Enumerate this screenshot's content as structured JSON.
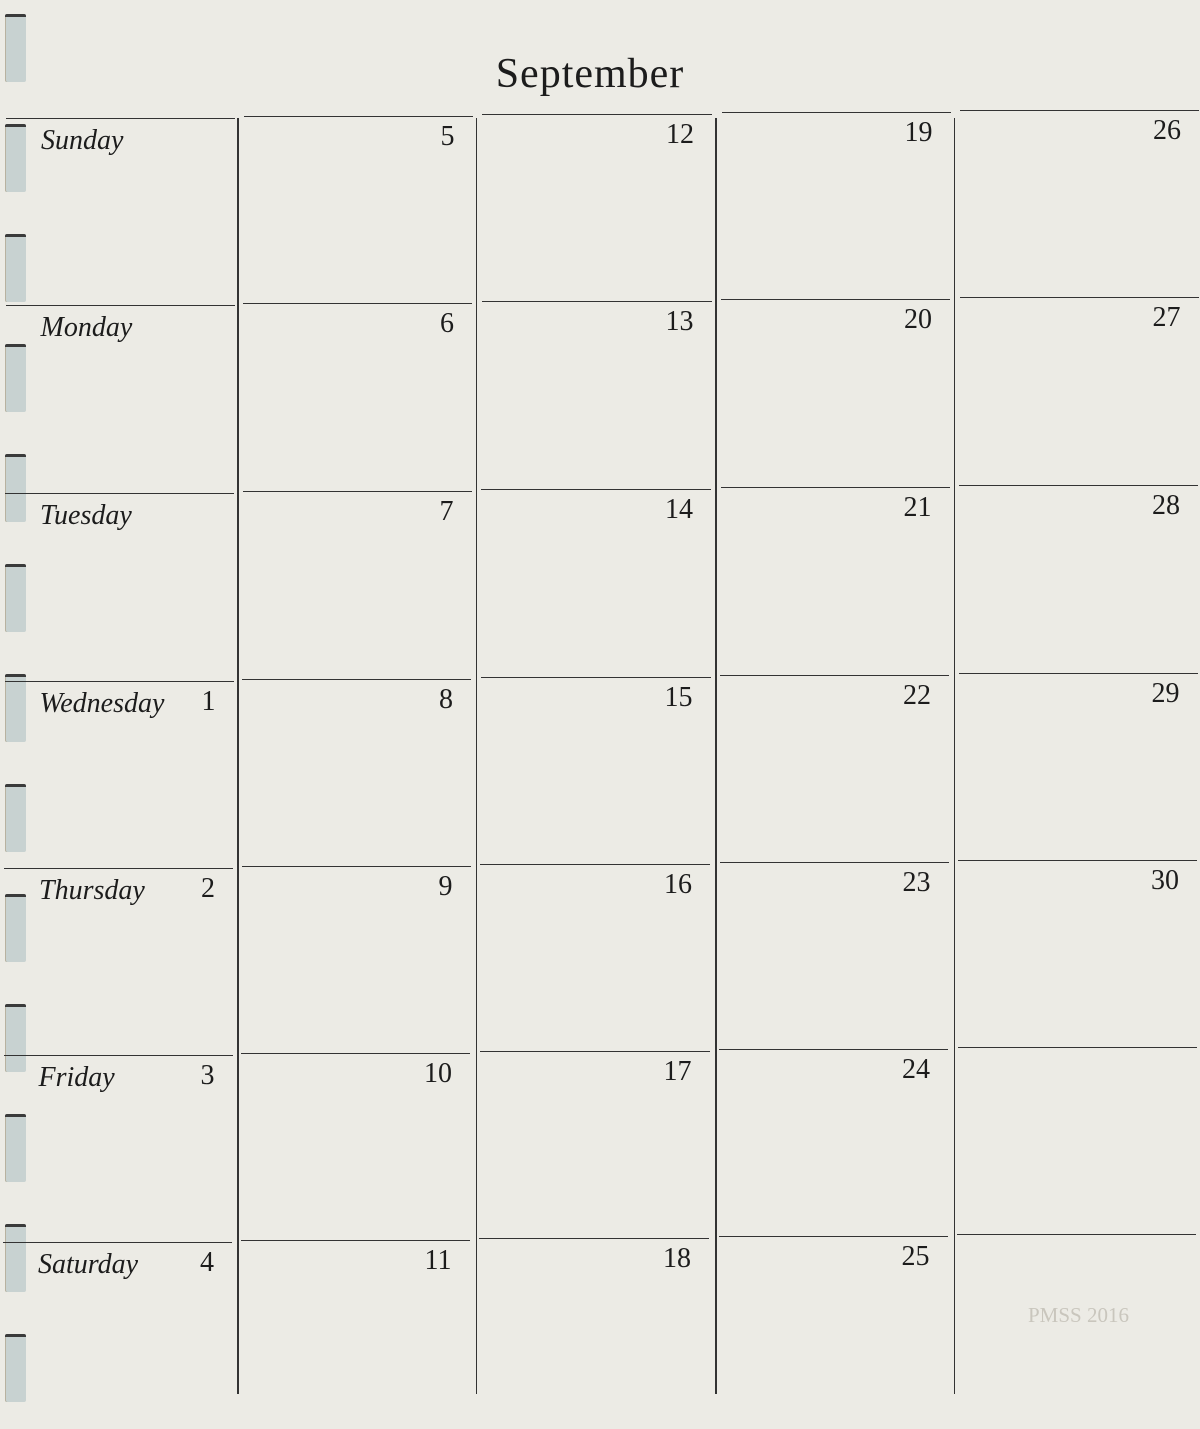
{
  "title": "September",
  "weekdays": [
    "Sunday",
    "Monday",
    "Tuesday",
    "Wednesday",
    "Thursday",
    "Friday",
    "Saturday"
  ],
  "dates": [
    [
      "",
      "5",
      "12",
      "19",
      "26"
    ],
    [
      "",
      "6",
      "13",
      "20",
      "27"
    ],
    [
      "",
      "7",
      "14",
      "21",
      "28"
    ],
    [
      "1",
      "8",
      "15",
      "22",
      "29"
    ],
    [
      "2",
      "9",
      "16",
      "23",
      "30"
    ],
    [
      "3",
      "10",
      "17",
      "24",
      ""
    ],
    [
      "4",
      "11",
      "18",
      "25",
      ""
    ]
  ],
  "watermark": "PMSS 2016",
  "colors": {
    "paper": "#ecebe5",
    "ink": "#1c1c1c",
    "holes": "#c8d2d1"
  }
}
